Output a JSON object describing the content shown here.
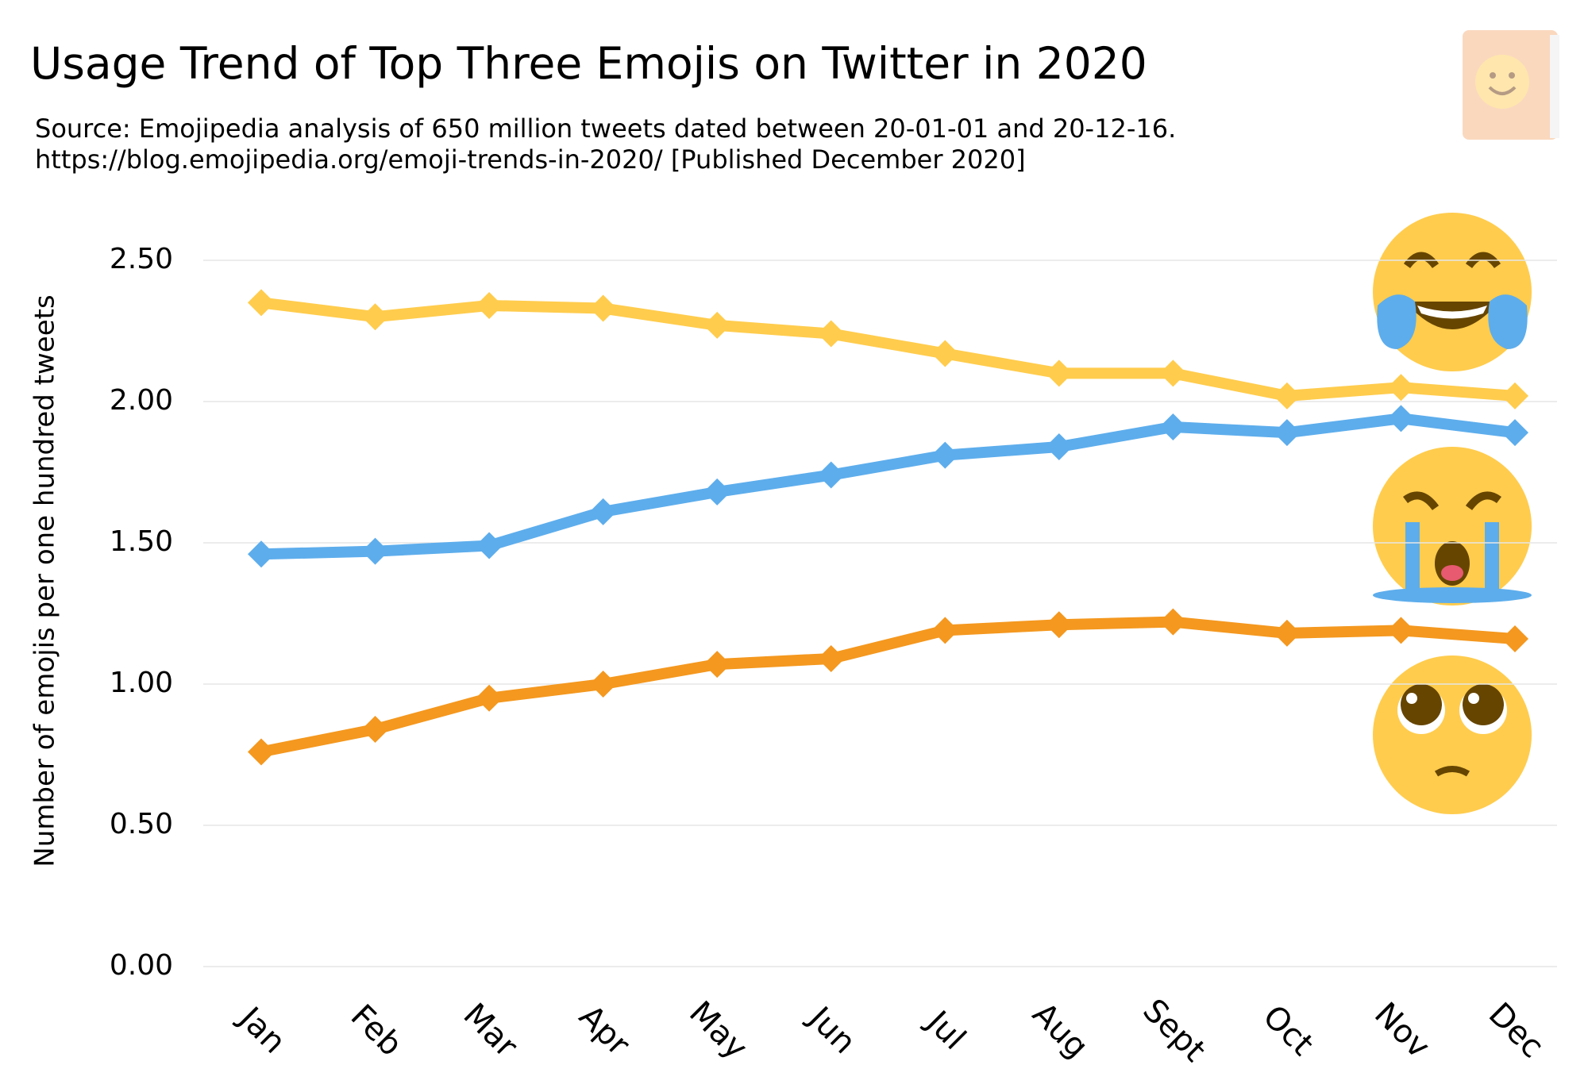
{
  "chart_data": {
    "type": "line",
    "title": "Usage Trend of Top Three Emojis on Twitter in 2020",
    "subtitle": [
      "Source: Emojipedia analysis of 650 million tweets dated between 20-01-01 and 20-12-16.",
      "https://blog.emojipedia.org/emoji-trends-in-2020/ [Published December 2020]"
    ],
    "y_label": "Number of emojis per one hundred tweets",
    "categories": [
      "Jan",
      "Feb",
      "Mar",
      "Apr",
      "May",
      "Jun",
      "Jul",
      "Aug",
      "Sept",
      "Oct",
      "Nov",
      "Dec"
    ],
    "series": [
      {
        "color": "#ffcc4d",
        "values": [
          2.35,
          2.3,
          2.34,
          2.33,
          2.27,
          2.24,
          2.17,
          2.1,
          2.1,
          2.02,
          2.05,
          2.02
        ]
      },
      {
        "color": "#5dadec",
        "values": [
          1.46,
          1.47,
          1.49,
          1.61,
          1.68,
          1.74,
          1.81,
          1.84,
          1.91,
          1.89,
          1.94,
          1.89
        ]
      },
      {
        "color": "#f4981f",
        "values": [
          0.76,
          0.84,
          0.95,
          1.0,
          1.07,
          1.09,
          1.19,
          1.21,
          1.22,
          1.18,
          1.19,
          1.16
        ]
      }
    ],
    "ylim": [
      0,
      2.5
    ],
    "yticks": [
      {
        "value": 0,
        "label": "0.00"
      },
      {
        "value": 0.5,
        "label": "0.50"
      },
      {
        "value": 1,
        "label": "1.00"
      },
      {
        "value": 1.5,
        "label": "1.50"
      },
      {
        "value": 2,
        "label": "2.00"
      },
      {
        "value": 2.5,
        "label": "2.50"
      }
    ],
    "grid": true
  }
}
